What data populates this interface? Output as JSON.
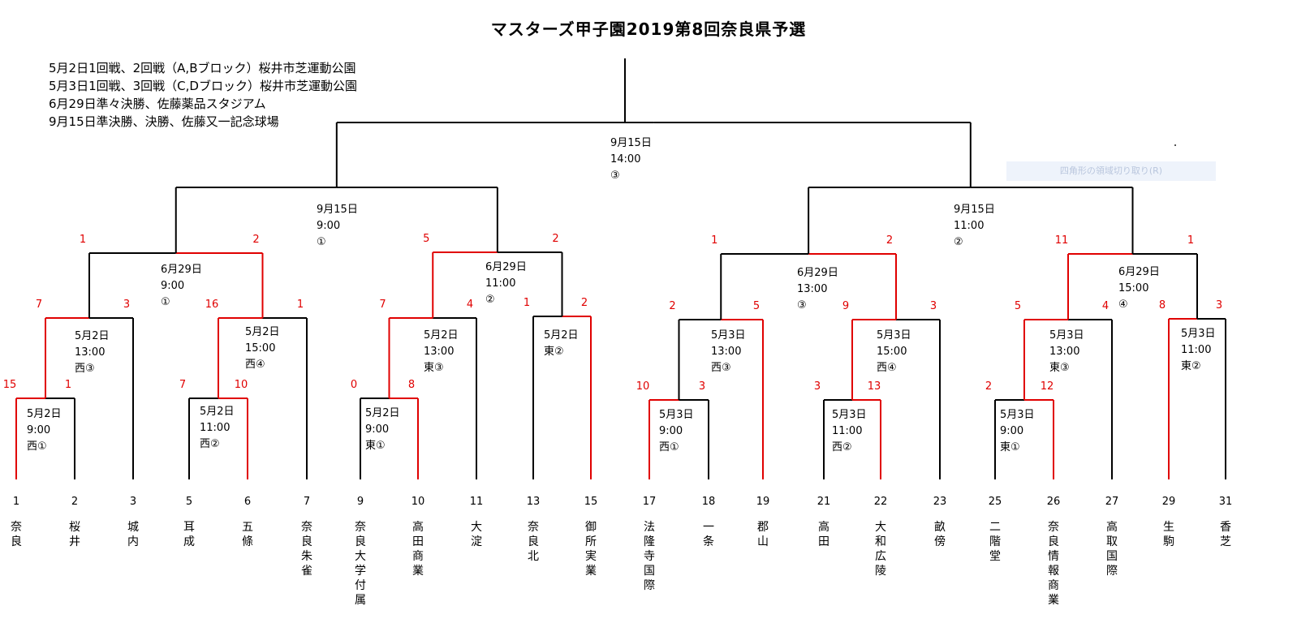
{
  "title": "マスターズ甲子園2019第8回奈良県予選",
  "notes": [
    "5月2日1回戦、2回戦（A,Bブロック）桜井市芝運動公園",
    "5月3日1回戦、3回戦（C,Dブロック）桜井市芝運動公園",
    "6月29日準々決勝、佐藤薬品スタジアム",
    "9月15日準決勝、決勝、佐藤又一記念球場"
  ],
  "ghost_label": "四角形の領域切り取り(R)",
  "teams": [
    {
      "seed": "1",
      "name": "奈良"
    },
    {
      "seed": "2",
      "name": "桜井"
    },
    {
      "seed": "3",
      "name": "城内"
    },
    {
      "seed": "5",
      "name": "耳成"
    },
    {
      "seed": "6",
      "name": "五條"
    },
    {
      "seed": "7",
      "name": "奈良朱雀"
    },
    {
      "seed": "9",
      "name": "奈良大学付属"
    },
    {
      "seed": "10",
      "name": "高田商業"
    },
    {
      "seed": "11",
      "name": "大淀"
    },
    {
      "seed": "13",
      "name": "奈良北"
    },
    {
      "seed": "15",
      "name": "御所実業"
    },
    {
      "seed": "17",
      "name": "法隆寺国際"
    },
    {
      "seed": "18",
      "name": "一条"
    },
    {
      "seed": "19",
      "name": "郡山"
    },
    {
      "seed": "21",
      "name": "高田"
    },
    {
      "seed": "22",
      "name": "大和広陵"
    },
    {
      "seed": "23",
      "name": "畝傍"
    },
    {
      "seed": "25",
      "name": "二階堂"
    },
    {
      "seed": "26",
      "name": "奈良情報商業"
    },
    {
      "seed": "27",
      "name": "高取国際"
    },
    {
      "seed": "29",
      "name": "生駒"
    },
    {
      "seed": "31",
      "name": "香芝"
    }
  ],
  "matches": [
    {
      "id": "r1a",
      "date": "5月2日",
      "time": "9:00",
      "venue": "西①",
      "scores": [
        "15",
        "1"
      ]
    },
    {
      "id": "r2a",
      "date": "5月2日",
      "time": "13:00",
      "venue": "西③",
      "scores": [
        "7",
        "3"
      ]
    },
    {
      "id": "r1b",
      "date": "5月2日",
      "time": "11:00",
      "venue": "西②",
      "scores": [
        "7",
        "10"
      ]
    },
    {
      "id": "r2b",
      "date": "5月2日",
      "time": "15:00",
      "venue": "西④",
      "scores": [
        "16",
        "1"
      ]
    },
    {
      "id": "r1c",
      "date": "5月2日",
      "time": "9:00",
      "venue": "東①",
      "scores": [
        "0",
        "8"
      ]
    },
    {
      "id": "r2c",
      "date": "5月2日",
      "time": "13:00",
      "venue": "東③",
      "scores": [
        "7",
        "4"
      ]
    },
    {
      "id": "r2d",
      "date": "5月2日",
      "time": "",
      "venue": "東②",
      "scores": [
        "1",
        "2"
      ]
    },
    {
      "id": "r1e",
      "date": "5月3日",
      "time": "9:00",
      "venue": "西①",
      "scores": [
        "10",
        "3"
      ]
    },
    {
      "id": "r2e",
      "date": "5月3日",
      "time": "13:00",
      "venue": "西③",
      "scores": [
        "2",
        "5"
      ]
    },
    {
      "id": "r1f",
      "date": "5月3日",
      "time": "11:00",
      "venue": "西②",
      "scores": [
        "3",
        "13"
      ]
    },
    {
      "id": "r2f",
      "date": "5月3日",
      "time": "15:00",
      "venue": "西④",
      "scores": [
        "9",
        "3"
      ]
    },
    {
      "id": "r1g",
      "date": "5月3日",
      "time": "9:00",
      "venue": "東①",
      "scores": [
        "2",
        "12"
      ]
    },
    {
      "id": "r2g",
      "date": "5月3日",
      "time": "13:00",
      "venue": "東③",
      "scores": [
        "5",
        "4"
      ]
    },
    {
      "id": "r2h",
      "date": "5月3日",
      "time": "11:00",
      "venue": "東②",
      "scores": [
        "8",
        "3"
      ]
    },
    {
      "id": "qf1",
      "date": "6月29日",
      "time": "9:00",
      "venue": "①",
      "scores": [
        "1",
        "2"
      ]
    },
    {
      "id": "qf2",
      "date": "6月29日",
      "time": "11:00",
      "venue": "②",
      "scores": [
        "5",
        "2"
      ]
    },
    {
      "id": "qf3",
      "date": "6月29日",
      "time": "13:00",
      "venue": "③",
      "scores": [
        "1",
        "2"
      ]
    },
    {
      "id": "qf4",
      "date": "6月29日",
      "time": "15:00",
      "venue": "④",
      "scores": [
        "11",
        "1"
      ]
    },
    {
      "id": "sf1",
      "date": "9月15日",
      "time": "9:00",
      "venue": "①",
      "scores": []
    },
    {
      "id": "sf2",
      "date": "9月15日",
      "time": "11:00",
      "venue": "②",
      "scores": []
    },
    {
      "id": "final",
      "date": "9月15日",
      "time": "14:00",
      "venue": "③",
      "scores": []
    }
  ],
  "colors": {
    "winner": "#e00000",
    "line": "#000000"
  }
}
